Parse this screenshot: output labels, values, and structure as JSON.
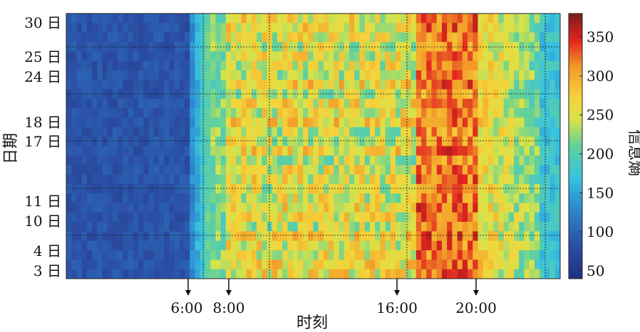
{
  "chart_data": {
    "type": "heatmap",
    "xlabel": "时刻",
    "ylabel": "日期",
    "x_annotations": [
      "6:00",
      "8:00",
      "16:00",
      "20:00"
    ],
    "y_tick_labels": [
      "3 日",
      "4 日",
      "10 日",
      "11 日",
      "17 日",
      "18 日",
      "24 日",
      "25 日",
      "30 日"
    ],
    "colorbar": {
      "label": "信息熵",
      "min": 40,
      "max": 380,
      "ticks": [
        "50",
        "100",
        "150",
        "200",
        "250",
        "300",
        "350"
      ],
      "colormap": "jet"
    },
    "grid": "dotted"
  }
}
